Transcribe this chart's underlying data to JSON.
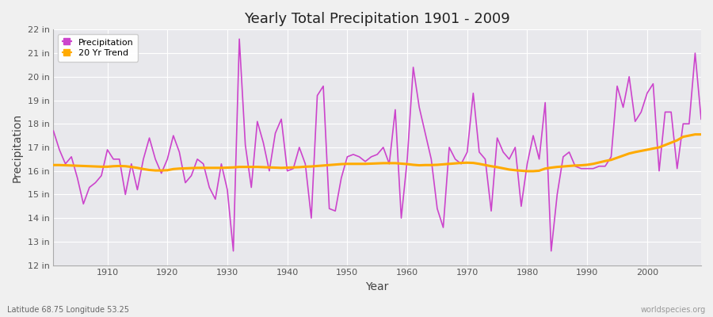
{
  "title": "Yearly Total Precipitation 1901 - 2009",
  "xlabel": "Year",
  "ylabel": "Precipitation",
  "subtitle": "Latitude 68.75 Longitude 53.25",
  "watermark": "worldspecies.org",
  "ylim": [
    12,
    22
  ],
  "yticks": [
    12,
    13,
    14,
    15,
    16,
    17,
    18,
    19,
    20,
    21,
    22
  ],
  "ytick_labels": [
    "12 in",
    "13 in",
    "14 in",
    "15 in",
    "16 in",
    "17 in",
    "18 in",
    "19 in",
    "20 in",
    "21 in",
    "22 in"
  ],
  "xlim": [
    1901,
    2009
  ],
  "precip_color": "#cc44cc",
  "trend_color": "#ffaa00",
  "bg_color": "#e8e8ec",
  "plot_bg_color": "#e8e8ec",
  "grid_color": "#ffffff",
  "years": [
    1901,
    1902,
    1903,
    1904,
    1905,
    1906,
    1907,
    1908,
    1909,
    1910,
    1911,
    1912,
    1913,
    1914,
    1915,
    1916,
    1917,
    1918,
    1919,
    1920,
    1921,
    1922,
    1923,
    1924,
    1925,
    1926,
    1927,
    1928,
    1929,
    1930,
    1931,
    1932,
    1933,
    1934,
    1935,
    1936,
    1937,
    1938,
    1939,
    1940,
    1941,
    1942,
    1943,
    1944,
    1945,
    1946,
    1947,
    1948,
    1949,
    1950,
    1951,
    1952,
    1953,
    1954,
    1955,
    1956,
    1957,
    1958,
    1959,
    1960,
    1961,
    1962,
    1963,
    1964,
    1965,
    1966,
    1967,
    1968,
    1969,
    1970,
    1971,
    1972,
    1973,
    1974,
    1975,
    1976,
    1977,
    1978,
    1979,
    1980,
    1981,
    1982,
    1983,
    1984,
    1985,
    1986,
    1987,
    1988,
    1989,
    1990,
    1991,
    1992,
    1993,
    1994,
    1995,
    1996,
    1997,
    1998,
    1999,
    2000,
    2001,
    2002,
    2003,
    2004,
    2005,
    2006,
    2007,
    2008,
    2009
  ],
  "precip": [
    17.7,
    16.9,
    16.3,
    16.6,
    15.7,
    14.6,
    15.3,
    15.5,
    15.8,
    16.9,
    16.5,
    16.5,
    15.0,
    16.3,
    15.2,
    16.5,
    17.4,
    16.5,
    15.9,
    16.5,
    17.5,
    16.8,
    15.5,
    15.8,
    16.5,
    16.3,
    15.3,
    14.8,
    16.3,
    15.2,
    12.6,
    21.6,
    17.1,
    15.3,
    18.1,
    17.2,
    16.0,
    17.6,
    18.2,
    16.0,
    16.1,
    17.0,
    16.3,
    14.0,
    19.2,
    19.6,
    14.4,
    14.3,
    15.7,
    16.6,
    16.7,
    16.6,
    16.4,
    16.6,
    16.7,
    17.0,
    16.3,
    18.6,
    14.0,
    16.5,
    20.4,
    18.7,
    17.6,
    16.5,
    14.4,
    13.6,
    17.0,
    16.5,
    16.3,
    16.8,
    19.3,
    16.8,
    16.5,
    14.3,
    17.4,
    16.8,
    16.5,
    17.0,
    14.5,
    16.3,
    17.5,
    16.5,
    18.9,
    12.6,
    15.0,
    16.6,
    16.8,
    16.2,
    16.1,
    16.1,
    16.1,
    16.2,
    16.2,
    16.6,
    19.6,
    18.7,
    20.0,
    18.1,
    18.5,
    19.3,
    19.7,
    16.0,
    18.5,
    18.5,
    16.1,
    18.0,
    18.0,
    21.0,
    18.2
  ],
  "trend": [
    16.25,
    16.25,
    16.24,
    16.23,
    16.22,
    16.21,
    16.2,
    16.19,
    16.18,
    16.18,
    16.2,
    16.21,
    16.2,
    16.17,
    16.13,
    16.08,
    16.04,
    16.02,
    16.02,
    16.03,
    16.08,
    16.1,
    16.11,
    16.12,
    16.13,
    16.13,
    16.13,
    16.13,
    16.13,
    16.14,
    16.15,
    16.17,
    16.17,
    16.17,
    16.17,
    16.16,
    16.15,
    16.14,
    16.13,
    16.14,
    16.15,
    16.16,
    16.18,
    16.19,
    16.21,
    16.23,
    16.25,
    16.27,
    16.29,
    16.3,
    16.3,
    16.3,
    16.3,
    16.31,
    16.32,
    16.33,
    16.33,
    16.33,
    16.31,
    16.29,
    16.26,
    16.24,
    16.25,
    16.25,
    16.26,
    16.28,
    16.3,
    16.32,
    16.34,
    16.35,
    16.34,
    16.3,
    16.25,
    16.2,
    16.16,
    16.11,
    16.06,
    16.03,
    16.01,
    15.99,
    15.99,
    16.01,
    16.1,
    16.14,
    16.17,
    16.19,
    16.21,
    16.23,
    16.24,
    16.26,
    16.3,
    16.36,
    16.42,
    16.47,
    16.56,
    16.65,
    16.74,
    16.8,
    16.85,
    16.9,
    16.95,
    17.0,
    17.1,
    17.2,
    17.3,
    17.45,
    17.5,
    17.55,
    17.55
  ]
}
